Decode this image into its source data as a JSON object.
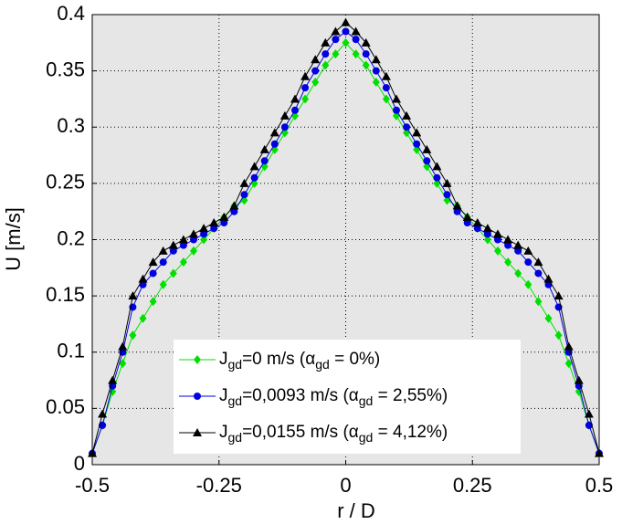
{
  "chart_data": {
    "type": "line",
    "xlabel": "r / D",
    "ylabel": "U [m/s]",
    "xlim": [
      -0.5,
      0.5
    ],
    "xticks": [
      -0.5,
      -0.25,
      0,
      0.25,
      0.5
    ],
    "ylim": [
      0,
      0.4
    ],
    "yticks": [
      0,
      0.05,
      0.1,
      0.15,
      0.2,
      0.25,
      0.3,
      0.35,
      0.4
    ],
    "grid": true,
    "legend": "bottom",
    "x": [
      -0.5,
      -0.48,
      -0.46,
      -0.44,
      -0.42,
      -0.4,
      -0.38,
      -0.36,
      -0.34,
      -0.32,
      -0.3,
      -0.28,
      -0.26,
      -0.24,
      -0.22,
      -0.2,
      -0.18,
      -0.16,
      -0.14,
      -0.12,
      -0.1,
      -0.08,
      -0.06,
      -0.04,
      -0.02,
      0,
      0.02,
      0.04,
      0.06,
      0.08,
      0.1,
      0.12,
      0.14,
      0.16,
      0.18,
      0.2,
      0.22,
      0.24,
      0.26,
      0.28,
      0.3,
      0.32,
      0.34,
      0.36,
      0.38,
      0.4,
      0.42,
      0.44,
      0.46,
      0.48,
      0.5
    ],
    "series": [
      {
        "name": [
          "J",
          "gd",
          "=0 m/s (α",
          "gd",
          " = 0%)"
        ],
        "color": "#00e000",
        "marker": "diamond",
        "values": [
          0.01,
          0.035,
          0.065,
          0.09,
          0.115,
          0.13,
          0.145,
          0.16,
          0.17,
          0.18,
          0.19,
          0.2,
          0.21,
          0.22,
          0.23,
          0.235,
          0.25,
          0.265,
          0.28,
          0.295,
          0.31,
          0.325,
          0.34,
          0.355,
          0.365,
          0.375,
          0.365,
          0.355,
          0.34,
          0.325,
          0.31,
          0.295,
          0.28,
          0.265,
          0.25,
          0.235,
          0.23,
          0.22,
          0.21,
          0.2,
          0.19,
          0.18,
          0.17,
          0.16,
          0.145,
          0.13,
          0.115,
          0.09,
          0.065,
          0.035,
          0.01
        ]
      },
      {
        "name": [
          "J",
          "gd",
          "=0,0093 m/s (α",
          "gd",
          " = 2,55%)"
        ],
        "color": "#0000e0",
        "marker": "circle",
        "values": [
          0.01,
          0.035,
          0.07,
          0.1,
          0.14,
          0.16,
          0.17,
          0.18,
          0.19,
          0.195,
          0.2,
          0.205,
          0.21,
          0.215,
          0.225,
          0.24,
          0.255,
          0.27,
          0.285,
          0.3,
          0.315,
          0.335,
          0.35,
          0.365,
          0.378,
          0.385,
          0.378,
          0.365,
          0.35,
          0.335,
          0.315,
          0.3,
          0.285,
          0.27,
          0.255,
          0.24,
          0.225,
          0.215,
          0.21,
          0.205,
          0.2,
          0.195,
          0.19,
          0.18,
          0.17,
          0.16,
          0.14,
          0.1,
          0.07,
          0.035,
          0.01
        ]
      },
      {
        "name": [
          "J",
          "gd",
          "=0,0155 m/s (α",
          "gd",
          " = 4,12%)"
        ],
        "color": "#000000",
        "marker": "triangle",
        "values": [
          0.01,
          0.045,
          0.075,
          0.105,
          0.15,
          0.165,
          0.18,
          0.19,
          0.195,
          0.2,
          0.205,
          0.21,
          0.215,
          0.22,
          0.23,
          0.25,
          0.265,
          0.28,
          0.295,
          0.31,
          0.325,
          0.345,
          0.36,
          0.375,
          0.385,
          0.393,
          0.385,
          0.375,
          0.36,
          0.345,
          0.325,
          0.31,
          0.295,
          0.28,
          0.265,
          0.25,
          0.23,
          0.22,
          0.215,
          0.21,
          0.205,
          0.2,
          0.195,
          0.19,
          0.18,
          0.165,
          0.15,
          0.105,
          0.075,
          0.045,
          0.01
        ]
      }
    ]
  }
}
